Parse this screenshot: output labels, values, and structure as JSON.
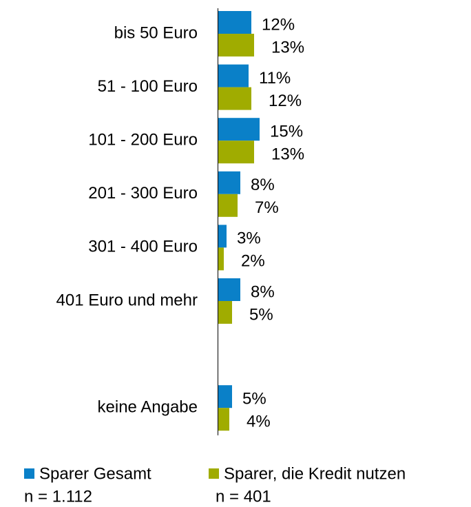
{
  "chart_data": {
    "type": "hbar",
    "categories": [
      "bis  50 Euro",
      "51 - 100 Euro",
      "101 - 200 Euro",
      "201 - 300 Euro",
      "301 - 400 Euro",
      "401 Euro und mehr",
      null,
      "keine Angabe"
    ],
    "series": [
      {
        "name": "Sparer Gesamt",
        "sample": "n = 1.112",
        "color": "#0a80c8",
        "values": [
          12,
          11,
          15,
          8,
          3,
          8,
          null,
          5
        ],
        "value_labels": [
          "12%",
          "11%",
          "15%",
          "8%",
          "3%",
          "8%",
          null,
          "5%"
        ]
      },
      {
        "name": "Sparer, die Kredit nutzen",
        "sample": "n = 401",
        "color": "#a0ac00",
        "values": [
          13,
          12,
          13,
          7,
          2,
          5,
          null,
          4
        ],
        "value_labels": [
          "13%",
          "12%",
          "13%",
          "7%",
          "2%",
          "5%",
          null,
          "4%"
        ]
      }
    ]
  }
}
